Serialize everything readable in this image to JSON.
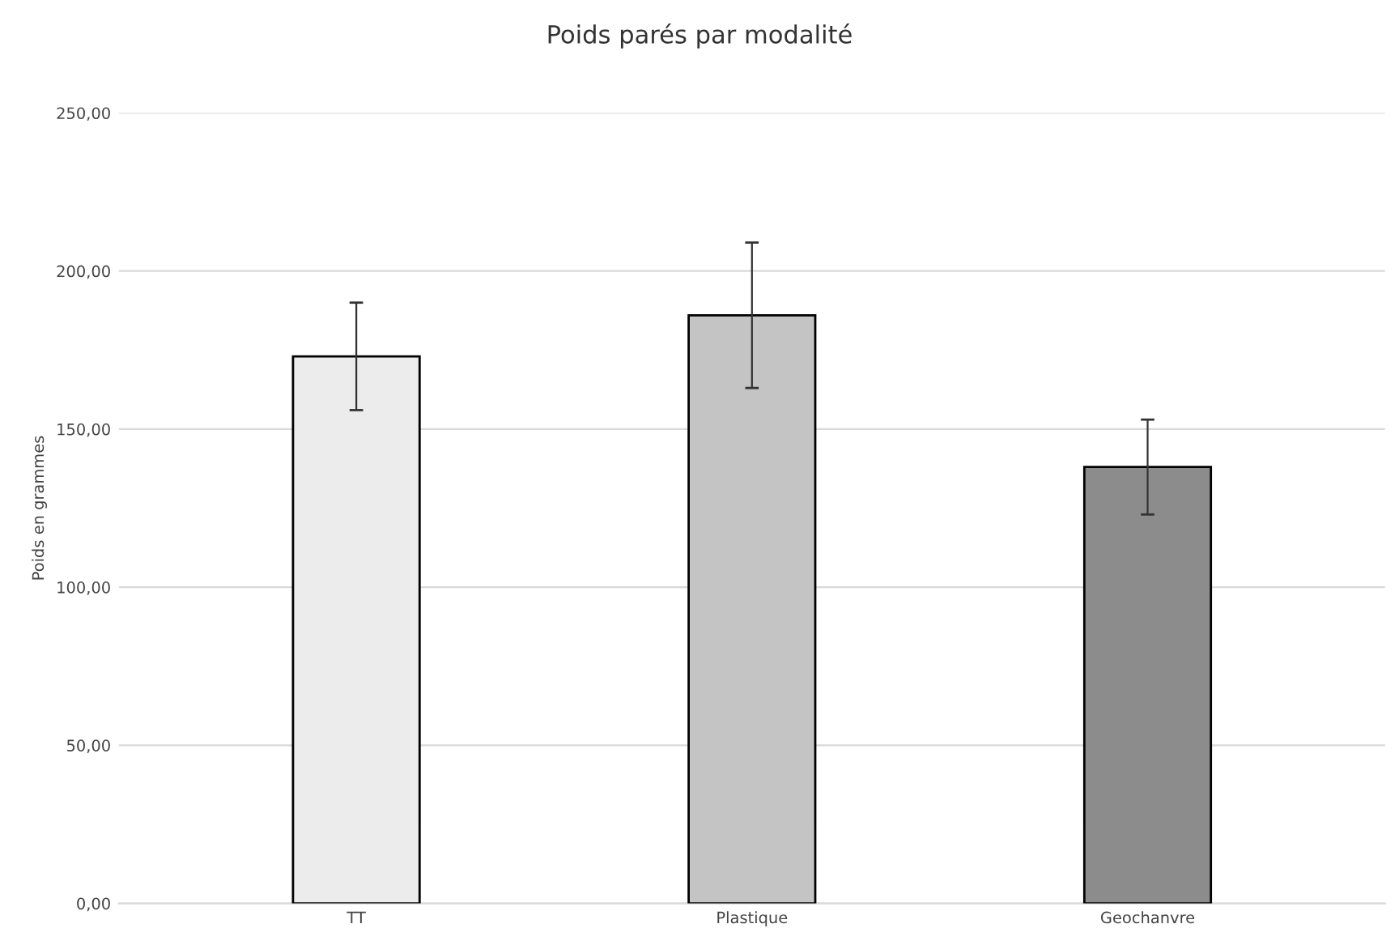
{
  "chart_data": {
    "type": "bar",
    "title": "Poids parés par modalité",
    "ylabel": "Poids en grammes",
    "categories": [
      "TT",
      "Plastique",
      "Geochanvre"
    ],
    "values": [
      173,
      186,
      138
    ],
    "errors": [
      17,
      23,
      15
    ],
    "colors": [
      "#ececec",
      "#c4c4c4",
      "#8c8c8c"
    ],
    "ylim": [
      0,
      250
    ],
    "yticks": [
      {
        "value": 0,
        "label": "0,00"
      },
      {
        "value": 50,
        "label": "50,00"
      },
      {
        "value": 100,
        "label": "100,00"
      },
      {
        "value": 150,
        "label": "150,00"
      },
      {
        "value": 200,
        "label": "200,00"
      },
      {
        "value": 250,
        "label": "250,00"
      }
    ],
    "grid": "y",
    "legend": false
  }
}
